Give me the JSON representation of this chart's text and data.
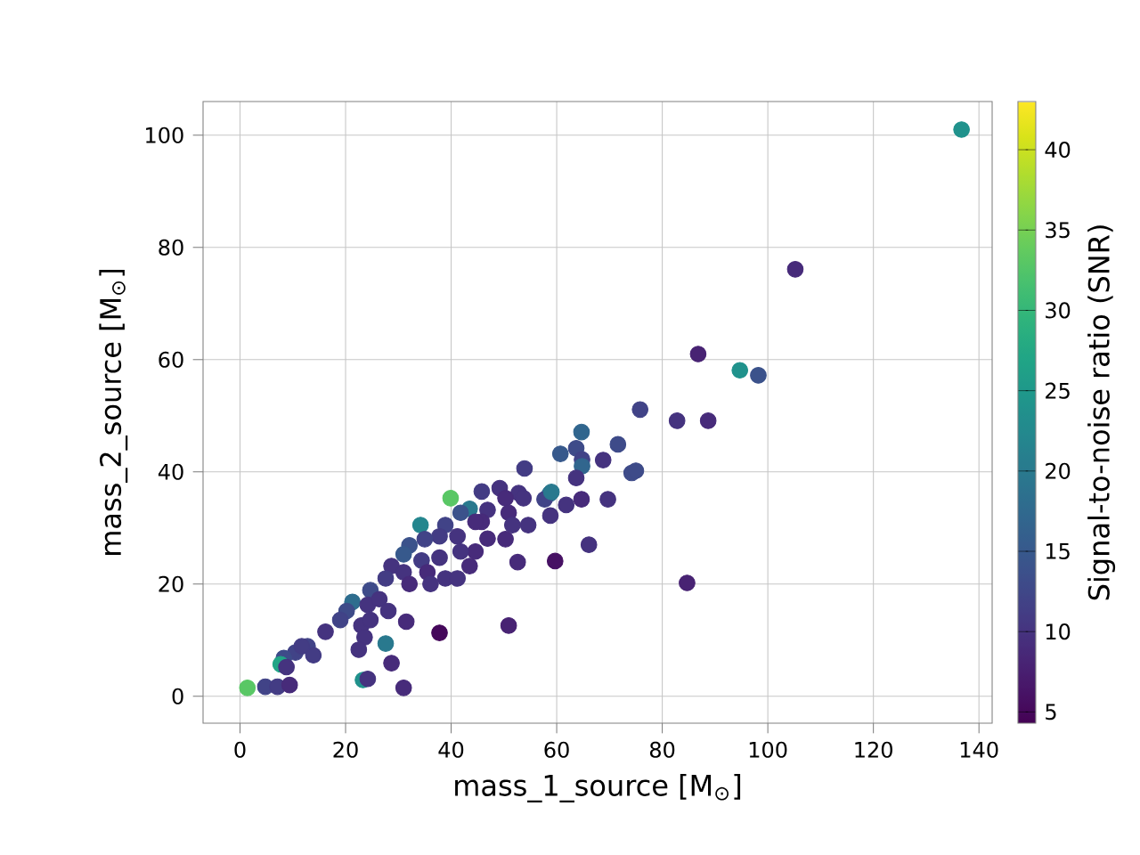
{
  "chart_data": {
    "type": "scatter",
    "xlabel": "mass_1_source [M$_{⊙}$]",
    "ylabel": "mass_2_source [M$_{⊙}$]",
    "clabel": "Signal-to-noise ratio (SNR)",
    "xlim": [
      -7,
      142.5
    ],
    "ylim": [
      -4.8,
      106
    ],
    "xticks": [
      0,
      20,
      40,
      60,
      80,
      100,
      120,
      140
    ],
    "yticks": [
      0,
      20,
      40,
      60,
      80,
      100
    ],
    "clim": [
      4.3,
      43
    ],
    "cticks": [
      5,
      10,
      15,
      20,
      25,
      30,
      35,
      40
    ],
    "grid": true,
    "marker": "circle",
    "x": [
      136.7,
      105.2,
      86.8,
      94.7,
      98.2,
      75.8,
      82.8,
      88.7,
      64.7,
      60.7,
      63.7,
      64.8,
      64.8,
      71.6,
      68.8,
      74.2,
      75.0,
      63.7,
      58.7,
      57.7,
      61.8,
      64.7,
      69.7,
      58.8,
      66.1,
      59.7,
      84.7,
      53.9,
      39.9,
      49.2,
      45.8,
      52.8,
      59.0,
      43.5,
      41.8,
      50.3,
      53.7,
      50.9,
      46.9,
      54.6,
      51.6,
      45.8,
      38.9,
      34.2,
      52.6,
      50.9,
      37.8,
      41.2,
      37.8,
      35.0,
      32.1,
      44.6,
      46.9,
      50.3,
      44.6,
      41.8,
      37.8,
      34.4,
      31.0,
      28.7,
      31.0,
      35.5,
      38.9,
      41.2,
      43.5,
      36.1,
      32.1,
      27.6,
      24.7,
      21.3,
      20.2,
      24.2,
      26.4,
      28.1,
      19.0,
      16.2,
      23.0,
      24.7,
      23.6,
      22.5,
      31.5,
      27.6,
      28.7,
      23.3,
      24.2,
      31.0,
      12.8,
      13.9,
      10.5,
      8.3,
      7.7,
      8.8,
      11.7,
      1.4,
      4.8,
      7.1,
      9.4
    ],
    "values": [
      101.0,
      76.1,
      61.0,
      58.1,
      57.2,
      51.1,
      49.1,
      49.1,
      47.1,
      43.2,
      44.2,
      42.2,
      41.0,
      44.9,
      42.1,
      39.8,
      40.2,
      38.9,
      36.1,
      35.1,
      34.1,
      35.1,
      35.1,
      32.2,
      27.0,
      24.1,
      20.2,
      40.6,
      35.3,
      37.1,
      36.5,
      36.2,
      36.4,
      33.4,
      32.7,
      35.3,
      35.3,
      32.7,
      33.2,
      30.5,
      30.5,
      31.1,
      30.5,
      30.5,
      23.9,
      12.6,
      11.3,
      28.5,
      28.5,
      28.0,
      26.9,
      31.1,
      28.1,
      28.0,
      25.8,
      25.8,
      24.7,
      24.2,
      25.3,
      23.2,
      22.1,
      22.1,
      21.0,
      21.0,
      23.2,
      20.0,
      20.0,
      21.0,
      18.9,
      16.8,
      15.2,
      16.3,
      17.3,
      15.2,
      13.6,
      11.5,
      12.6,
      13.6,
      10.5,
      8.3,
      13.3,
      9.4,
      5.9,
      2.9,
      3.1,
      1.5,
      8.9,
      7.3,
      7.8,
      6.8,
      5.7,
      5.2,
      8.9,
      1.5,
      1.7,
      1.7,
      2.0
    ],
    "cvalues": [
      24,
      9,
      8,
      24,
      14,
      12,
      10,
      9,
      17,
      15,
      13,
      12,
      17,
      13,
      10,
      13,
      13,
      10,
      18,
      12,
      10,
      9,
      10,
      10,
      10,
      6,
      8,
      11,
      33,
      10,
      11,
      10,
      20,
      20,
      14,
      9,
      10,
      9,
      10,
      10,
      10,
      9,
      12,
      22,
      9,
      8,
      5,
      10,
      11,
      12,
      14,
      9,
      9,
      9,
      9,
      10,
      10,
      11,
      15,
      10,
      10,
      9,
      10,
      10,
      9,
      10,
      9,
      11,
      13,
      18,
      13,
      10,
      10,
      10,
      12,
      10,
      10,
      10,
      10,
      10,
      9,
      20,
      9,
      24,
      10,
      9,
      12,
      11,
      12,
      13,
      27,
      10,
      11,
      33,
      12,
      11,
      9
    ]
  }
}
